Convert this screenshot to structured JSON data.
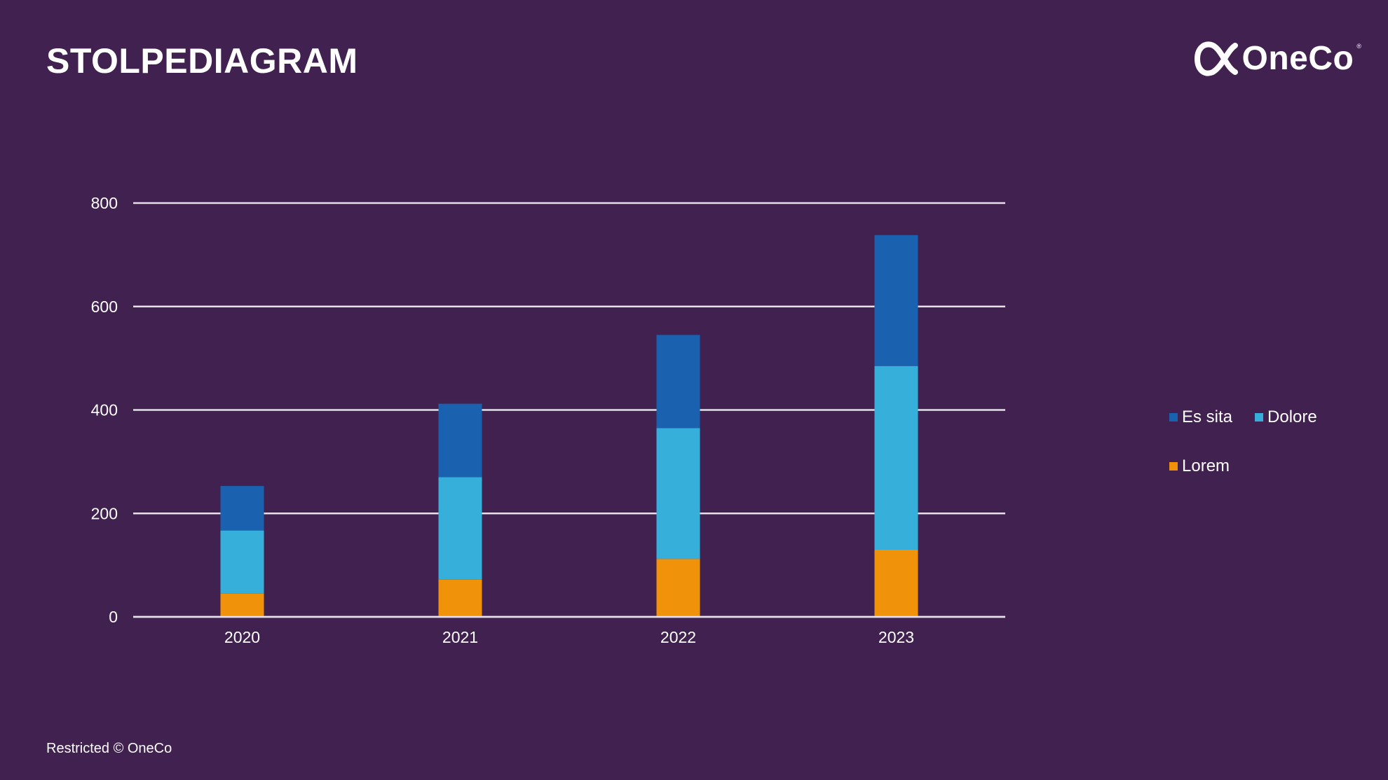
{
  "slide": {
    "title": "STOLPEDIAGRAM",
    "footer": "Restricted © OneCo"
  },
  "logo": {
    "name": "OneCo",
    "icon": "alpha-loop-icon",
    "mark": "®"
  },
  "colors": {
    "background": "#41214f",
    "lorem": "#f0920a",
    "dolore": "#36afdb",
    "es_sita": "#1a62b0",
    "gridline": "#e6e0ea"
  },
  "chart_data": {
    "type": "bar",
    "stacked": true,
    "categories": [
      "2020",
      "2021",
      "2022",
      "2023"
    ],
    "series": [
      {
        "name": "Lorem",
        "values": [
          45,
          72,
          112,
          130
        ]
      },
      {
        "name": "Dolore",
        "values": [
          122,
          198,
          253,
          355
        ]
      },
      {
        "name": "Es sita",
        "values": [
          86,
          142,
          180,
          253
        ]
      }
    ],
    "ylim": [
      0,
      800
    ],
    "yticks": [
      0,
      200,
      400,
      600,
      800
    ],
    "grid": true,
    "legend_position": "right",
    "legend_rows": [
      [
        "Es sita",
        "Dolore"
      ],
      [
        "Lorem"
      ]
    ]
  }
}
